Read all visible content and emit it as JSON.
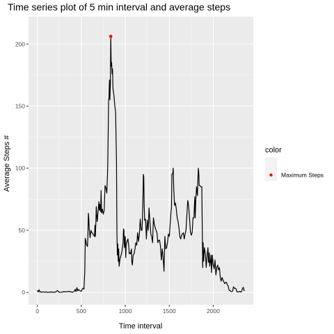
{
  "chart_data": {
    "type": "line",
    "title": "Time series plot of 5 min interval and average steps",
    "xlabel": "Time interval",
    "ylabel": "Average Steps #",
    "xlim": [
      -100,
      2455
    ],
    "ylim": [
      -10,
      222
    ],
    "x_ticks": [
      0,
      500,
      1000,
      1500,
      2000
    ],
    "y_ticks": [
      0,
      50,
      100,
      150,
      200
    ],
    "x_tick_labels": [
      "0",
      "500",
      "1000",
      "1500",
      "2000"
    ],
    "y_tick_labels": [
      "0",
      "50",
      "100",
      "150",
      "200"
    ],
    "grid": true,
    "legend": {
      "title": "color",
      "position": "right",
      "entries": [
        {
          "label": "Maximum Steps",
          "color": "#ff0000"
        }
      ]
    },
    "series": [
      {
        "line_color": "#000000",
        "points": [
          [
            0,
            1.7
          ],
          [
            10,
            0.3
          ],
          [
            20,
            2.1
          ],
          [
            30,
            0.2
          ],
          [
            40,
            0.5
          ],
          [
            50,
            0.1
          ],
          [
            60,
            0.4
          ],
          [
            80,
            0.2
          ],
          [
            100,
            0.3
          ],
          [
            120,
            0
          ],
          [
            150,
            0.3
          ],
          [
            200,
            0.1
          ],
          [
            230,
            1.4
          ],
          [
            250,
            0
          ],
          [
            280,
            0.2
          ],
          [
            300,
            0.5
          ],
          [
            330,
            0.4
          ],
          [
            360,
            0.8
          ],
          [
            400,
            0.1
          ],
          [
            420,
            0.8
          ],
          [
            430,
            2.5
          ],
          [
            440,
            0.6
          ],
          [
            450,
            3.8
          ],
          [
            460,
            1.2
          ],
          [
            470,
            2.3
          ],
          [
            480,
            1.5
          ],
          [
            500,
            0.8
          ],
          [
            510,
            2.5
          ],
          [
            520,
            3.4
          ],
          [
            530,
            2.6
          ],
          [
            540,
            17.4
          ],
          [
            545,
            43.5
          ],
          [
            550,
            42
          ],
          [
            560,
            38
          ],
          [
            570,
            37
          ],
          [
            575,
            45
          ],
          [
            580,
            63.7
          ],
          [
            585,
            60
          ],
          [
            590,
            51
          ],
          [
            595,
            48
          ],
          [
            600,
            44
          ],
          [
            610,
            50
          ],
          [
            620,
            48
          ],
          [
            630,
            47.5
          ],
          [
            640,
            46
          ],
          [
            650,
            45
          ],
          [
            655,
            54
          ],
          [
            660,
            45
          ],
          [
            665,
            55
          ],
          [
            670,
            69
          ],
          [
            680,
            57
          ],
          [
            685,
            60
          ],
          [
            690,
            65
          ],
          [
            700,
            73
          ],
          [
            705,
            66
          ],
          [
            710,
            71
          ],
          [
            720,
            65
          ],
          [
            725,
            82
          ],
          [
            730,
            64
          ],
          [
            740,
            67
          ],
          [
            750,
            63
          ],
          [
            760,
            66
          ],
          [
            770,
            86
          ],
          [
            780,
            84
          ],
          [
            790,
            80
          ],
          [
            800,
            100
          ],
          [
            805,
            125
          ],
          [
            810,
            154
          ],
          [
            815,
            157
          ],
          [
            820,
            171
          ],
          [
            825,
            155
          ],
          [
            830,
            167
          ],
          [
            835,
            206.2
          ],
          [
            840,
            182
          ],
          [
            845,
            185
          ],
          [
            850,
            176
          ],
          [
            855,
            180
          ],
          [
            860,
            164
          ],
          [
            870,
            159
          ],
          [
            880,
            151
          ],
          [
            890,
            145
          ],
          [
            900,
            105
          ],
          [
            905,
            48
          ],
          [
            910,
            30
          ],
          [
            915,
            39
          ],
          [
            920,
            25
          ],
          [
            925,
            35
          ],
          [
            930,
            21
          ],
          [
            940,
            27
          ],
          [
            960,
            32
          ],
          [
            975,
            40
          ],
          [
            980,
            51
          ],
          [
            985,
            50
          ],
          [
            990,
            36
          ],
          [
            1000,
            45
          ],
          [
            1005,
            28
          ],
          [
            1010,
            38
          ],
          [
            1020,
            41
          ],
          [
            1030,
            43
          ],
          [
            1040,
            37
          ],
          [
            1045,
            31
          ],
          [
            1050,
            32
          ],
          [
            1060,
            31
          ],
          [
            1070,
            35
          ],
          [
            1075,
            24
          ],
          [
            1080,
            22
          ],
          [
            1090,
            30
          ],
          [
            1100,
            31
          ],
          [
            1110,
            35
          ],
          [
            1120,
            40
          ],
          [
            1130,
            38
          ],
          [
            1140,
            48
          ],
          [
            1150,
            41
          ],
          [
            1160,
            47
          ],
          [
            1170,
            59
          ],
          [
            1180,
            50
          ],
          [
            1190,
            50
          ],
          [
            1195,
            60
          ],
          [
            1200,
            73
          ],
          [
            1205,
            95
          ],
          [
            1210,
            93
          ],
          [
            1215,
            70
          ],
          [
            1220,
            58
          ],
          [
            1230,
            59
          ],
          [
            1240,
            43
          ],
          [
            1250,
            58
          ],
          [
            1260,
            50
          ],
          [
            1270,
            68
          ],
          [
            1280,
            57
          ],
          [
            1290,
            47
          ],
          [
            1300,
            45
          ],
          [
            1310,
            40
          ],
          [
            1320,
            60
          ],
          [
            1330,
            55
          ],
          [
            1340,
            52
          ],
          [
            1350,
            50
          ],
          [
            1360,
            48
          ],
          [
            1370,
            40
          ],
          [
            1380,
            42
          ],
          [
            1390,
            42
          ],
          [
            1400,
            37
          ],
          [
            1410,
            26
          ],
          [
            1420,
            35
          ],
          [
            1430,
            28
          ],
          [
            1440,
            17
          ],
          [
            1450,
            45
          ],
          [
            1460,
            35
          ],
          [
            1470,
            36
          ],
          [
            1480,
            40
          ],
          [
            1490,
            47
          ],
          [
            1500,
            45
          ],
          [
            1510,
            55
          ],
          [
            1520,
            65
          ],
          [
            1525,
            68
          ],
          [
            1530,
            95
          ],
          [
            1540,
            96
          ],
          [
            1545,
            100
          ],
          [
            1550,
            85
          ],
          [
            1560,
            70
          ],
          [
            1570,
            72
          ],
          [
            1580,
            67
          ],
          [
            1590,
            60
          ],
          [
            1600,
            57
          ],
          [
            1610,
            52
          ],
          [
            1620,
            45
          ],
          [
            1630,
            43
          ],
          [
            1640,
            46
          ],
          [
            1650,
            47
          ],
          [
            1660,
            48
          ],
          [
            1670,
            43
          ],
          [
            1680,
            47
          ],
          [
            1690,
            50
          ],
          [
            1700,
            62
          ],
          [
            1710,
            74
          ],
          [
            1720,
            70
          ],
          [
            1730,
            60
          ],
          [
            1740,
            49
          ],
          [
            1750,
            46
          ],
          [
            1760,
            48
          ],
          [
            1770,
            60
          ],
          [
            1780,
            60
          ],
          [
            1785,
            68
          ],
          [
            1790,
            77
          ],
          [
            1795,
            60
          ],
          [
            1800,
            72
          ],
          [
            1810,
            85
          ],
          [
            1820,
            78
          ],
          [
            1830,
            100
          ],
          [
            1835,
            97
          ],
          [
            1840,
            86
          ],
          [
            1850,
            86
          ],
          [
            1860,
            85
          ],
          [
            1870,
            85
          ],
          [
            1875,
            51
          ],
          [
            1880,
            20
          ],
          [
            1885,
            40
          ],
          [
            1890,
            25
          ],
          [
            1900,
            36
          ],
          [
            1910,
            31
          ],
          [
            1915,
            26
          ],
          [
            1920,
            20
          ],
          [
            1930,
            30
          ],
          [
            1940,
            36
          ],
          [
            1945,
            25
          ],
          [
            1950,
            24
          ],
          [
            1955,
            32
          ],
          [
            1960,
            21
          ],
          [
            1970,
            26
          ],
          [
            1975,
            30
          ],
          [
            1980,
            16
          ],
          [
            1990,
            30
          ],
          [
            2000,
            22
          ],
          [
            2010,
            19
          ],
          [
            2020,
            26
          ],
          [
            2030,
            14
          ],
          [
            2040,
            20
          ],
          [
            2050,
            22
          ],
          [
            2060,
            18
          ],
          [
            2070,
            20
          ],
          [
            2080,
            12
          ],
          [
            2090,
            9
          ],
          [
            2100,
            12
          ],
          [
            2110,
            10
          ],
          [
            2120,
            8.5
          ],
          [
            2130,
            7
          ],
          [
            2140,
            8
          ],
          [
            2150,
            8
          ],
          [
            2160,
            6
          ],
          [
            2170,
            5
          ],
          [
            2180,
            1.7
          ],
          [
            2190,
            1.6
          ],
          [
            2200,
            0.7
          ],
          [
            2210,
            0.6
          ],
          [
            2220,
            1
          ],
          [
            2230,
            4.5
          ],
          [
            2240,
            3.3
          ],
          [
            2250,
            3.3
          ],
          [
            2260,
            2.7
          ],
          [
            2270,
            0.3
          ],
          [
            2280,
            0.4
          ],
          [
            2290,
            0.4
          ],
          [
            2300,
            0.8
          ],
          [
            2310,
            0.3
          ],
          [
            2320,
            0.5
          ],
          [
            2330,
            2.6
          ],
          [
            2340,
            4.1
          ],
          [
            2345,
            3.2
          ],
          [
            2350,
            1.5
          ],
          [
            2355,
            1.1
          ]
        ]
      }
    ],
    "highlight": {
      "name": "Maximum Steps",
      "x": 835,
      "y": 206.2,
      "color": "#ff0000"
    }
  }
}
